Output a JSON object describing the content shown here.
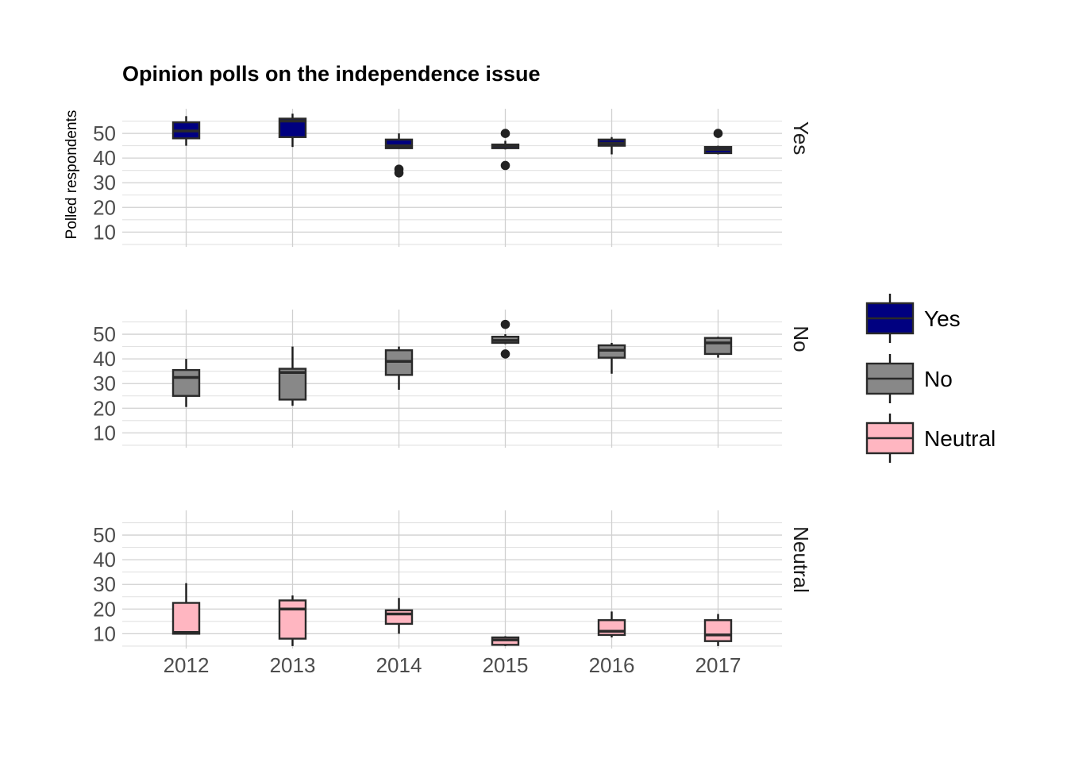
{
  "chart_data": {
    "type": "boxplot",
    "title": "Opinion polls on the independence issue",
    "ylabel": "Polled respondents",
    "xlabel": "",
    "categories": [
      "2012",
      "2013",
      "2014",
      "2015",
      "2016",
      "2017"
    ],
    "ylim": [
      4,
      60
    ],
    "yticks": [
      10,
      20,
      30,
      40,
      50
    ],
    "grid": true,
    "legend_position": "right",
    "panels": [
      {
        "name": "Yes",
        "color": "#000080",
        "boxes": [
          {
            "x": "2012",
            "min": 45,
            "q1": 48,
            "median": 51,
            "q3": 54.5,
            "max": 57,
            "outliers": []
          },
          {
            "x": "2013",
            "min": 44.5,
            "q1": 48.5,
            "median": 55,
            "q3": 56,
            "max": 58,
            "outliers": []
          },
          {
            "x": "2014",
            "min": 44,
            "q1": 44,
            "median": 45,
            "q3": 47.5,
            "max": 50,
            "outliers": [
              35.5,
              34
            ]
          },
          {
            "x": "2015",
            "min": 43.5,
            "q1": 44,
            "median": 45,
            "q3": 45.5,
            "max": 47,
            "outliers": [
              50,
              37
            ]
          },
          {
            "x": "2016",
            "min": 41.5,
            "q1": 45,
            "median": 46,
            "q3": 47.5,
            "max": 48.5,
            "outliers": []
          },
          {
            "x": "2017",
            "min": 41.5,
            "q1": 42,
            "median": 43.5,
            "q3": 44.5,
            "max": 45,
            "outliers": [
              50
            ]
          }
        ]
      },
      {
        "name": "No",
        "color": "#888888",
        "boxes": [
          {
            "x": "2012",
            "min": 20.5,
            "q1": 25,
            "median": 32.5,
            "q3": 35.5,
            "max": 40,
            "outliers": []
          },
          {
            "x": "2013",
            "min": 21,
            "q1": 23.5,
            "median": 34.5,
            "q3": 36,
            "max": 45,
            "outliers": []
          },
          {
            "x": "2014",
            "min": 27.5,
            "q1": 33.5,
            "median": 39,
            "q3": 43.5,
            "max": 45,
            "outliers": []
          },
          {
            "x": "2015",
            "min": 46,
            "q1": 46.5,
            "median": 47.5,
            "q3": 49,
            "max": 50,
            "outliers": [
              54,
              42
            ]
          },
          {
            "x": "2016",
            "min": 34,
            "q1": 40.5,
            "median": 43.5,
            "q3": 45.5,
            "max": 46.5,
            "outliers": []
          },
          {
            "x": "2017",
            "min": 40.5,
            "q1": 42,
            "median": 46.5,
            "q3": 48.5,
            "max": 49,
            "outliers": []
          }
        ]
      },
      {
        "name": "Neutral",
        "color": "#FFB6C1",
        "boxes": [
          {
            "x": "2012",
            "min": 10,
            "q1": 10,
            "median": 10.5,
            "q3": 22.5,
            "max": 30.5,
            "outliers": []
          },
          {
            "x": "2013",
            "min": 5,
            "q1": 8,
            "median": 20,
            "q3": 23.5,
            "max": 25.5,
            "outliers": []
          },
          {
            "x": "2014",
            "min": 10,
            "q1": 14,
            "median": 18,
            "q3": 19.5,
            "max": 24.5,
            "outliers": []
          },
          {
            "x": "2015",
            "min": 5,
            "q1": 5.5,
            "median": 7.5,
            "q3": 8.5,
            "max": 9,
            "outliers": []
          },
          {
            "x": "2016",
            "min": 8.5,
            "q1": 9.5,
            "median": 11,
            "q3": 15.5,
            "max": 19,
            "outliers": []
          },
          {
            "x": "2017",
            "min": 5,
            "q1": 7,
            "median": 9.5,
            "q3": 15.5,
            "max": 18,
            "outliers": []
          }
        ]
      }
    ],
    "legend": [
      {
        "label": "Yes",
        "color": "#000080"
      },
      {
        "label": "No",
        "color": "#888888"
      },
      {
        "label": "Neutral",
        "color": "#FFB6C1"
      }
    ]
  }
}
